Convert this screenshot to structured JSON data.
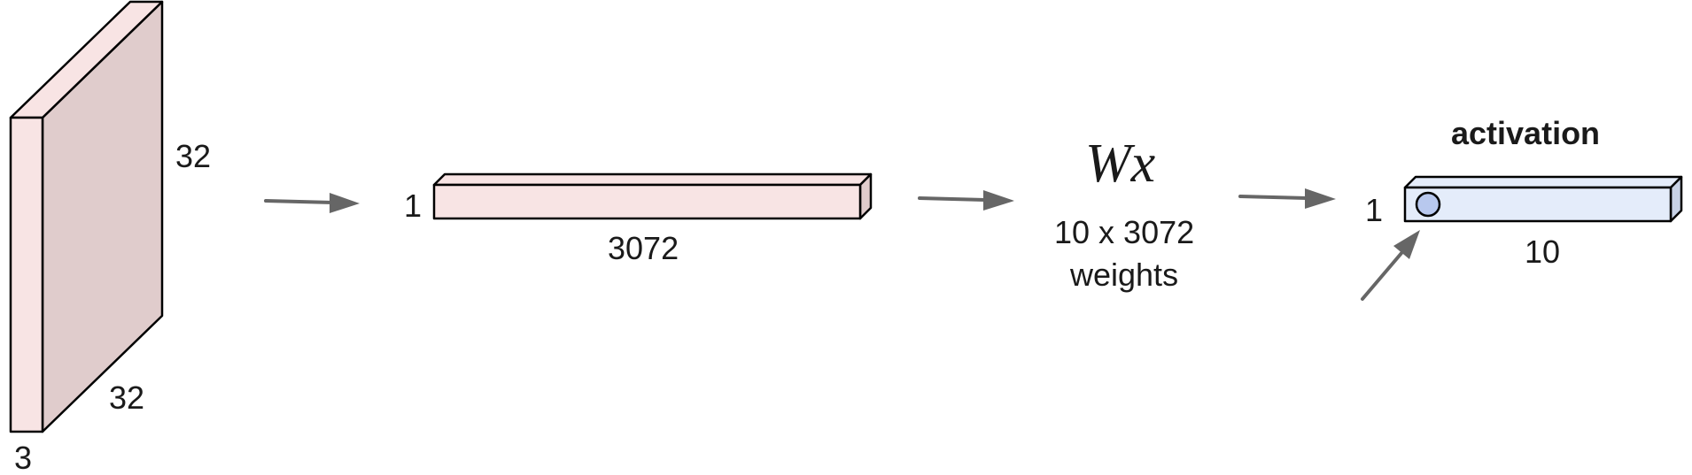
{
  "input_volume": {
    "height_label": "32",
    "width_label": "32",
    "depth_label": "3",
    "colors": {
      "front": "#f8e4e4",
      "side": "#e0cccc",
      "top": "#f8e4e4"
    }
  },
  "stretched_vector": {
    "rows_label": "1",
    "length_label": "3072",
    "colors": {
      "front": "#f8e4e4",
      "top": "#f8e4e4",
      "end": "#e0cccc"
    }
  },
  "weights": {
    "formula": "Wx",
    "dims_label": "10 x 3072",
    "weights_label": "weights"
  },
  "activation_vector": {
    "title": "activation",
    "rows_label": "1",
    "length_label": "10",
    "colors": {
      "front": "#e4ecfa",
      "top": "#e4ecfa",
      "end": "#c8d2e6",
      "neuron": "#b8c8ee"
    }
  },
  "arrow_color": "#666666"
}
